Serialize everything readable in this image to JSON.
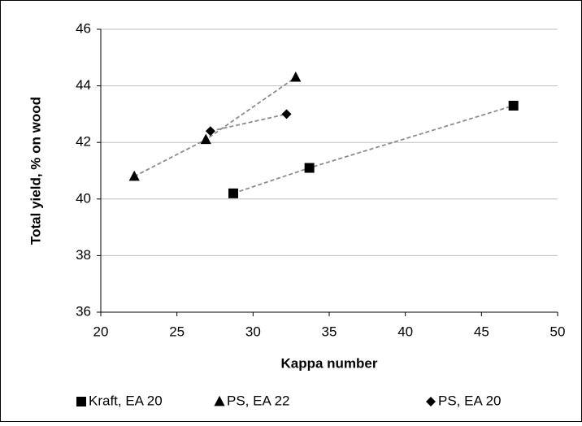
{
  "chart_data": {
    "type": "scatter",
    "x_label": "Kappa number",
    "y_label": "Total yield, % on wood",
    "xlim": [
      20,
      50
    ],
    "xticks": [
      20,
      25,
      30,
      35,
      40,
      45,
      50
    ],
    "ylim": [
      36,
      46
    ],
    "yticks": [
      36,
      38,
      40,
      42,
      44,
      46
    ],
    "grid": true,
    "legend": "bottom",
    "series": [
      {
        "name": "Kraft, EA 20",
        "marker": "square",
        "color": "#000000",
        "x": [
          28.7,
          33.7,
          47.1
        ],
        "values": [
          40.2,
          41.1,
          43.3
        ]
      },
      {
        "name": "PS, EA 22",
        "marker": "triangle",
        "color": "#000000",
        "x": [
          22.2,
          26.9,
          32.8
        ],
        "values": [
          40.8,
          42.1,
          44.3
        ]
      },
      {
        "name": "PS, EA 20",
        "marker": "diamond",
        "color": "#000000",
        "x": [
          27.2,
          32.2
        ],
        "values": [
          42.4,
          43.0
        ]
      }
    ]
  }
}
